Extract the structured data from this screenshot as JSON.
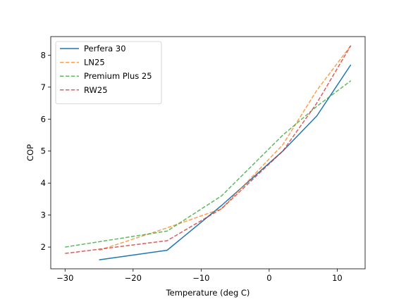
{
  "chart_data": {
    "type": "line",
    "xlabel": "Temperature (deg C)",
    "ylabel": "COP",
    "xlim": [
      -32.1,
      14.1
    ],
    "ylim": [
      1.32,
      8.58
    ],
    "xticks": [
      -30,
      -20,
      -10,
      0,
      10
    ],
    "xtick_labels": [
      "−30",
      "−20",
      "−10",
      "0",
      "10"
    ],
    "yticks": [
      2,
      3,
      4,
      5,
      6,
      7,
      8
    ],
    "ytick_labels": [
      "2",
      "3",
      "4",
      "5",
      "6",
      "7",
      "8"
    ],
    "grid": false,
    "legend_position": "top-left",
    "series": [
      {
        "name": "Perfera 30",
        "color": "#1f77b4",
        "dash": "solid",
        "x": [
          -25,
          -15,
          -7,
          2,
          7,
          12
        ],
        "y": [
          1.6,
          1.9,
          3.3,
          5.0,
          6.1,
          7.7
        ]
      },
      {
        "name": "LN25",
        "color": "#ff7f0e",
        "dash": "dashed",
        "x": [
          -25,
          -15,
          -7,
          2,
          7,
          12
        ],
        "y": [
          1.9,
          2.6,
          3.2,
          5.2,
          6.9,
          8.3
        ]
      },
      {
        "name": "Premium Plus 25",
        "color": "#2ca02c",
        "dash": "dashed",
        "x": [
          -30,
          -15,
          -7,
          2,
          7,
          12
        ],
        "y": [
          2.0,
          2.5,
          3.6,
          5.5,
          6.4,
          7.2
        ]
      },
      {
        "name": "RW25",
        "color": "#d62728",
        "dash": "dashed",
        "x": [
          -30,
          -15,
          -7,
          2,
          7,
          12
        ],
        "y": [
          1.8,
          2.2,
          3.2,
          5.0,
          6.5,
          8.3
        ]
      }
    ]
  }
}
